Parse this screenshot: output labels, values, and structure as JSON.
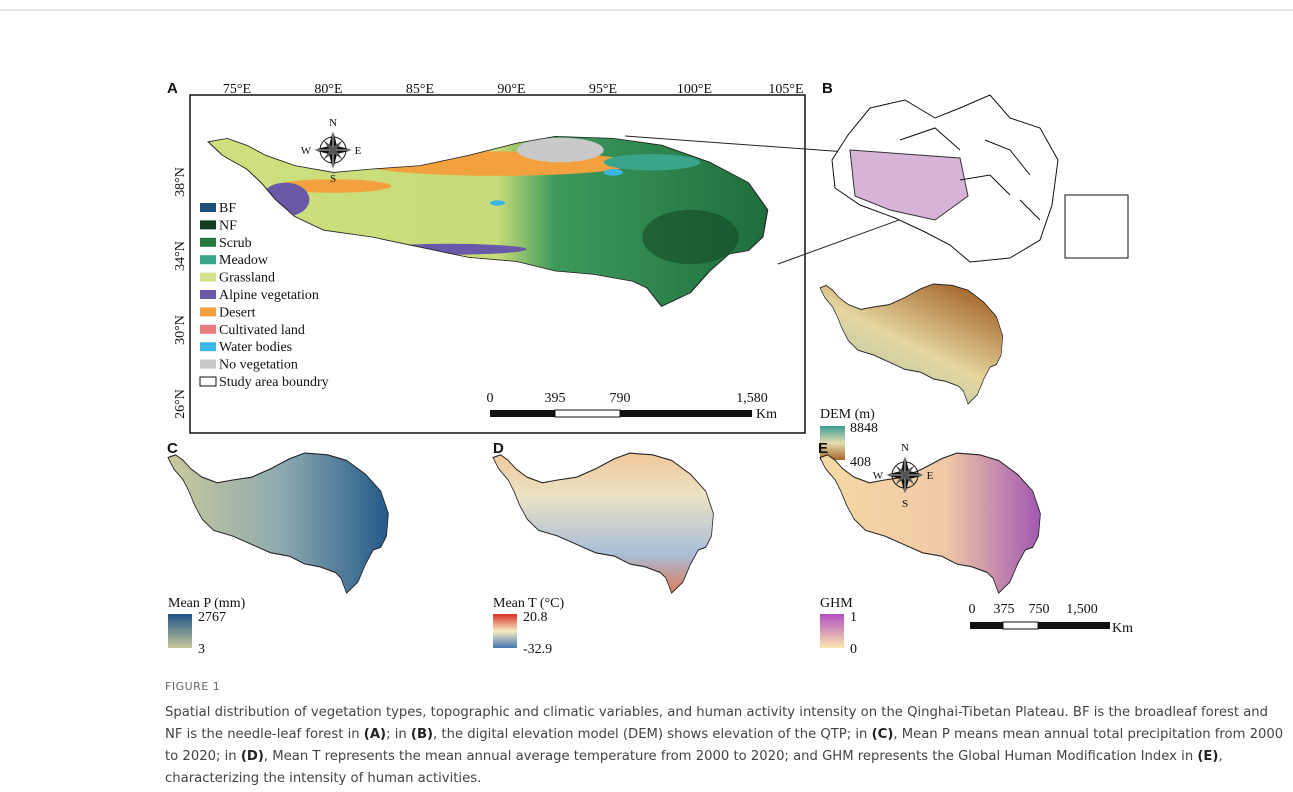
{
  "figure": {
    "panel_a": {
      "label": "A",
      "lon_ticks": [
        "75°E",
        "80°E",
        "85°E",
        "90°E",
        "95°E",
        "100°E",
        "105°E"
      ],
      "lat_ticks": [
        "38°N",
        "34°N",
        "30°N",
        "26°N"
      ],
      "compass": {
        "N": "N",
        "E": "E",
        "S": "S",
        "W": "W"
      },
      "legend": [
        {
          "label": "BF",
          "color": "#1b4f7a"
        },
        {
          "label": "NF",
          "color": "#0f3d1e"
        },
        {
          "label": "Scrub",
          "color": "#237a3a"
        },
        {
          "label": "Meadow",
          "color": "#3aa58a"
        },
        {
          "label": "Grassland",
          "color": "#d3e38a"
        },
        {
          "label": "Alpine vegetation",
          "color": "#6a58a8"
        },
        {
          "label": "Desert",
          "color": "#f3a13e"
        },
        {
          "label": "Cultivated land",
          "color": "#ec7b7b"
        },
        {
          "label": "Water bodies",
          "color": "#3bb7e6"
        },
        {
          "label": "No vegetation",
          "color": "#c9c9c9"
        },
        {
          "label": "Study area boundry",
          "color": "#ffffff"
        }
      ],
      "scale": [
        "0",
        "395",
        "790",
        "1,580"
      ],
      "scale_unit": "Km"
    },
    "panel_b": {
      "label": "B",
      "legend_title": "DEM (m)",
      "max": "8848",
      "min": "408"
    },
    "panel_c": {
      "label": "C",
      "legend_title": "Mean P (mm)",
      "max": "2767",
      "min": "3"
    },
    "panel_d": {
      "label": "D",
      "legend_title": "Mean T (°C)",
      "max": "20.8",
      "min": "-32.9"
    },
    "panel_e": {
      "label": "E",
      "legend_title": "GHM",
      "max": "1",
      "min": "0",
      "compass": {
        "N": "N",
        "E": "E",
        "S": "S",
        "W": "W"
      },
      "scale": [
        "0",
        "375",
        "750",
        "1,500"
      ],
      "scale_unit": "Km"
    }
  },
  "caption": {
    "label": "FIGURE 1",
    "parts": [
      {
        "text": "Spatial distribution of vegetation types, topographic and climatic variables, and human activity intensity on the Qinghai-Tibetan Plateau. BF is the broadleaf forest and NF is the needle-leaf forest in ",
        "bold": false
      },
      {
        "text": "(A)",
        "bold": true
      },
      {
        "text": "; in ",
        "bold": false
      },
      {
        "text": "(B)",
        "bold": true
      },
      {
        "text": ", the digital elevation model (DEM) shows elevation of the QTP; in ",
        "bold": false
      },
      {
        "text": "(C)",
        "bold": true
      },
      {
        "text": ", Mean P means mean annual total precipitation from 2000 to 2020; in ",
        "bold": false
      },
      {
        "text": "(D)",
        "bold": true
      },
      {
        "text": ", Mean T represents the mean annual average temperature from 2000 to 2020; and GHM represents the Global Human Modification Index in ",
        "bold": false
      },
      {
        "text": "(E)",
        "bold": true
      },
      {
        "text": ", characterizing the intensity of human activities.",
        "bold": false
      }
    ]
  }
}
